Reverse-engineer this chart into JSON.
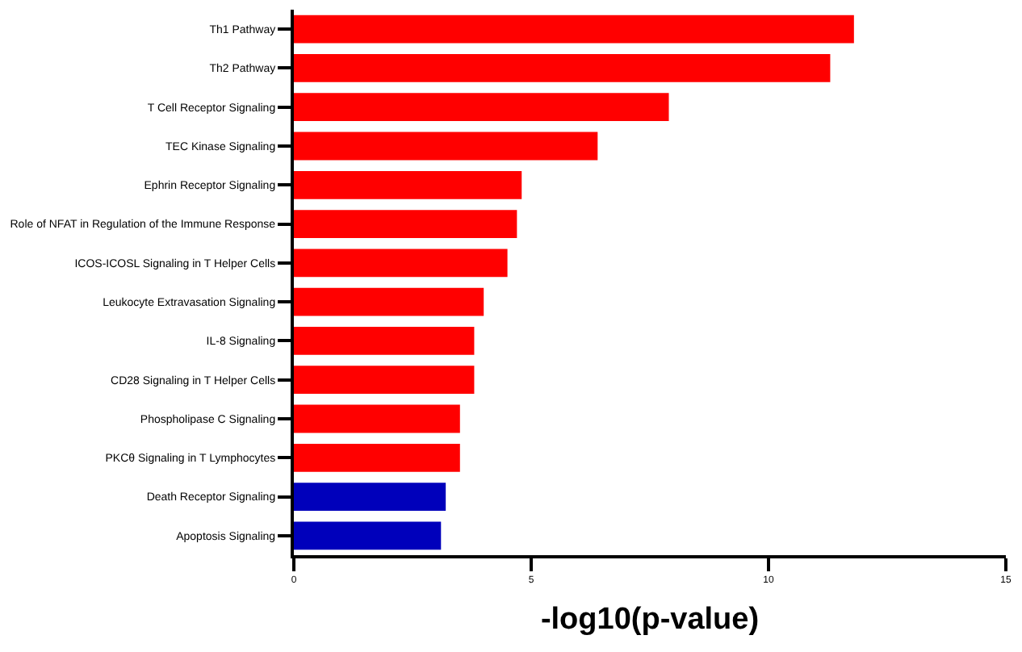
{
  "chart_data": {
    "type": "bar",
    "orientation": "horizontal",
    "xlabel": "-log10(p-value)",
    "categories": [
      "Th1 Pathway",
      "Th2 Pathway",
      "T Cell Receptor Signaling",
      "TEC Kinase Signaling",
      "Ephrin Receptor Signaling",
      "Role of NFAT in Regulation of the Immune Response",
      "ICOS-ICOSL Signaling in T Helper Cells",
      "Leukocyte Extravasation Signaling",
      "IL-8 Signaling",
      "CD28 Signaling in T Helper Cells",
      "Phospholipase C Signaling",
      "PKCθ Signaling in T Lymphocytes",
      "Death Receptor Signaling",
      "Apoptosis Signaling"
    ],
    "values": [
      11.8,
      11.3,
      7.9,
      6.4,
      4.8,
      4.7,
      4.5,
      4.0,
      3.8,
      3.8,
      3.5,
      3.5,
      3.2,
      3.1
    ],
    "colors": [
      "#ff0000",
      "#ff0000",
      "#ff0000",
      "#ff0000",
      "#ff0000",
      "#ff0000",
      "#ff0000",
      "#ff0000",
      "#ff0000",
      "#ff0000",
      "#ff0000",
      "#ff0000",
      "#0000bb",
      "#0000bb"
    ],
    "xlim": [
      0,
      15
    ],
    "xticks": [
      0,
      5,
      10,
      15
    ]
  }
}
